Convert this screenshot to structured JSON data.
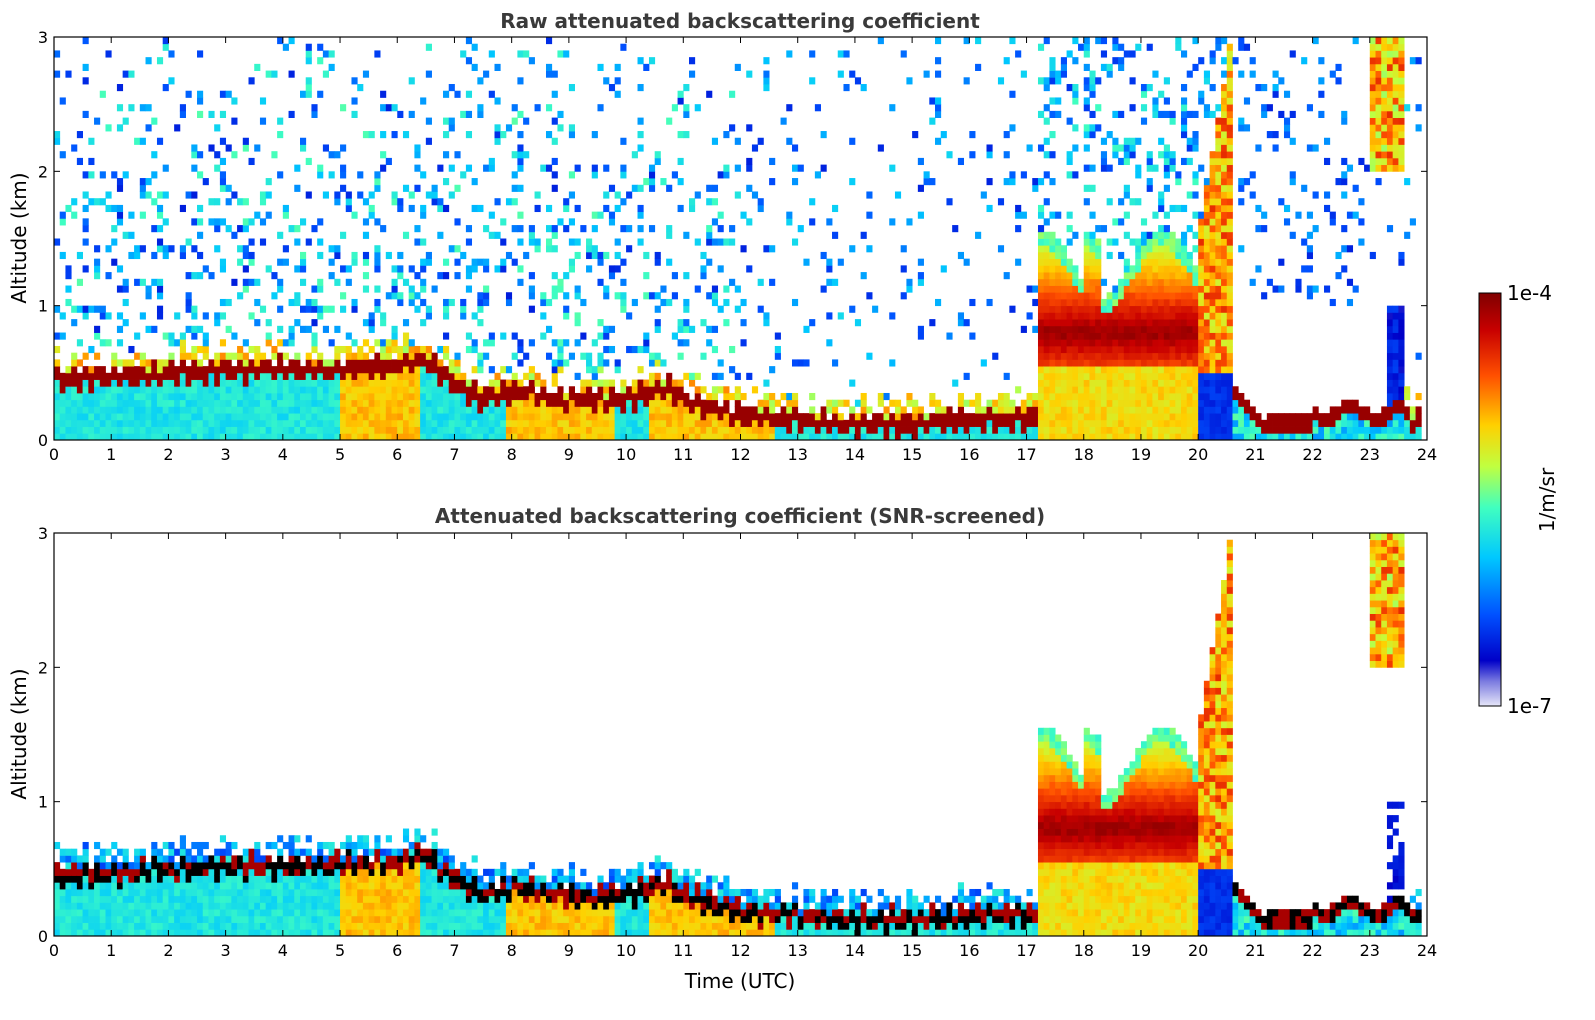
{
  "chart_data": [
    {
      "type": "heatmap",
      "title": "Raw attenuated backscattering coefficient",
      "xlabel": "",
      "ylabel": "Altitude (km)",
      "xlim": [
        0,
        24
      ],
      "ylim": [
        0,
        3
      ],
      "xticks": [
        "0",
        "1",
        "2",
        "3",
        "4",
        "5",
        "6",
        "7",
        "8",
        "9",
        "10",
        "11",
        "12",
        "13",
        "14",
        "15",
        "16",
        "17",
        "18",
        "19",
        "20",
        "21",
        "22",
        "23",
        "24"
      ],
      "yticks": [
        "0",
        "1",
        "2",
        "3"
      ],
      "screened": false,
      "features": {
        "boundary_layer_top_km": [
          [
            0,
            0.45
          ],
          [
            1,
            0.47
          ],
          [
            2,
            0.5
          ],
          [
            3,
            0.52
          ],
          [
            4,
            0.52
          ],
          [
            5,
            0.53
          ],
          [
            6,
            0.55
          ],
          [
            6.5,
            0.6
          ],
          [
            7,
            0.42
          ],
          [
            7.5,
            0.3
          ],
          [
            8,
            0.36
          ],
          [
            9,
            0.3
          ],
          [
            10,
            0.3
          ],
          [
            10.7,
            0.4
          ],
          [
            11,
            0.3
          ],
          [
            12,
            0.18
          ],
          [
            13,
            0.15
          ],
          [
            14,
            0.12
          ],
          [
            15,
            0.12
          ],
          [
            16,
            0.15
          ],
          [
            17,
            0.16
          ],
          [
            17.2,
            0.16
          ]
        ],
        "cloud_layer": {
          "time_start": 17.2,
          "time_end": 20.0,
          "base_km": 0.55,
          "top_km": 1.4,
          "peak_km": 0.8
        },
        "high_cloud_plume": {
          "time_start": 19.8,
          "time_end": 20.6,
          "top_km": 3.0
        },
        "late_layer": {
          "time_start": 20.7,
          "time_end": 23.5,
          "top_km": 0.35
        },
        "upper_cloud": {
          "time_start": 23.0,
          "time_end": 23.8,
          "base_km": 2.0,
          "top_km": 3.0
        }
      }
    },
    {
      "type": "heatmap",
      "title": "Attenuated backscattering coefficient (SNR-screened)",
      "xlabel": "Time (UTC)",
      "ylabel": "Altitude (km)",
      "xlim": [
        0,
        24
      ],
      "ylim": [
        0,
        3
      ],
      "xticks": [
        "0",
        "1",
        "2",
        "3",
        "4",
        "5",
        "6",
        "7",
        "8",
        "9",
        "10",
        "11",
        "12",
        "13",
        "14",
        "15",
        "16",
        "17",
        "18",
        "19",
        "20",
        "21",
        "22",
        "23",
        "24"
      ],
      "yticks": [
        "0",
        "1",
        "2",
        "3"
      ],
      "screened": true
    }
  ],
  "colorbar": {
    "label": "1/m/sr",
    "min_label": "1e-7",
    "max_label": "1e-4",
    "colormap": "jet",
    "colors": [
      "#e6e6f8",
      "#0000c8",
      "#0050ff",
      "#00c8ff",
      "#40ffc0",
      "#c0ff40",
      "#ffd000",
      "#ff5000",
      "#c80000",
      "#800000"
    ]
  }
}
